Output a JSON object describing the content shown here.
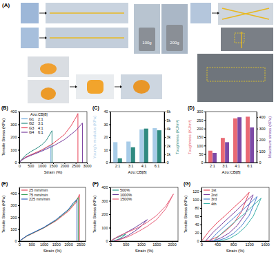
{
  "photos": {
    "label": "(A)",
    "weights": [
      "100g",
      "200g"
    ]
  },
  "chart_data": [
    {
      "type": "line",
      "title": "(B)",
      "xlabel": "Strain (%)",
      "ylabel": "Tensile Stress (KPa)",
      "xlim": [
        0,
        3000
      ],
      "xticks": [
        0,
        500,
        1000,
        1500,
        2000,
        2500,
        3000
      ],
      "ylim": [
        0,
        400
      ],
      "yticks": [
        0,
        100,
        200,
        300,
        400
      ],
      "legend": "upper left",
      "legend_title": "Azo:CB[8]",
      "series": [
        {
          "name": "G1",
          "ratio": "2:1",
          "color": "#6fa8dc",
          "x": [
            0,
            100,
            300,
            500,
            800,
            1000,
            1200,
            1400,
            1400
          ],
          "values": [
            0,
            20,
            45,
            60,
            80,
            95,
            115,
            135,
            0
          ]
        },
        {
          "name": "G2",
          "ratio": "3:1",
          "color": "#2a8c82",
          "x": [
            0,
            100,
            300,
            500,
            800,
            1000,
            1200,
            1450,
            1450
          ],
          "values": [
            0,
            25,
            60,
            85,
            115,
            140,
            175,
            250,
            0
          ]
        },
        {
          "name": "G3",
          "ratio": "4:1",
          "color": "#e8455a",
          "x": [
            0,
            100,
            300,
            500,
            1000,
            1500,
            2000,
            2300,
            2500,
            2600,
            2600
          ],
          "values": [
            0,
            20,
            45,
            60,
            100,
            150,
            220,
            290,
            350,
            385,
            0
          ]
        },
        {
          "name": "G4",
          "ratio": "6:1",
          "color": "#7b3f9e",
          "x": [
            0,
            100,
            300,
            500,
            1000,
            1500,
            2000,
            2500,
            2800,
            2800
          ],
          "values": [
            0,
            18,
            40,
            55,
            90,
            130,
            180,
            250,
            310,
            0
          ]
        }
      ]
    },
    {
      "type": "bar",
      "title": "(C)",
      "xlabel": "Azo:CB[8]",
      "ylabel": "Young's modulus (KPa)",
      "y2label": "Toughness (KJ/m³)",
      "categories": [
        "2:1",
        "3:1",
        "4:1",
        "6:1"
      ],
      "ylim": [
        0,
        40
      ],
      "yticks": [
        0,
        10,
        20,
        30,
        40
      ],
      "y2lim": [
        0,
        6000
      ],
      "y2ticks": [
        0,
        {
          "value": 1000,
          "label": "1k"
        },
        {
          "value": 2000,
          "label": "2k"
        },
        {
          "value": 3000,
          "label": "3k"
        },
        {
          "value": 4000,
          "label": "4k"
        },
        {
          "value": 5000,
          "label": "5k"
        },
        {
          "value": 6000,
          "label": "6k"
        }
      ],
      "series": [
        {
          "color": "#a8cce8",
          "values": [
            16,
            16.5,
            26,
            27
          ]
        },
        {
          "color": "#2f8a80",
          "axis": "y2",
          "values": [
            500,
            1800,
            4000,
            3800
          ]
        }
      ]
    },
    {
      "type": "bar",
      "title": "(D)",
      "xlabel": "Azo:CB[8]",
      "ylabel": "Toughness (KJ/m³)",
      "y2label": "Maximum stress (KPa)",
      "categories": [
        "2:1",
        "3:1",
        "4:1",
        "6:1"
      ],
      "ylim": [
        0,
        300
      ],
      "yticks": [
        0,
        50,
        100,
        150,
        200,
        250,
        300
      ],
      "y2lim": [
        0,
        450
      ],
      "y2ticks": [
        0,
        100,
        200,
        300,
        400
      ],
      "series": [
        {
          "color": "#e96a74",
          "values": [
            70,
            145,
            260,
            270
          ]
        },
        {
          "color": "#7d4aa6",
          "axis": "y2",
          "values": [
            85,
            180,
            400,
            310
          ]
        }
      ]
    },
    {
      "type": "line",
      "title": "(E)",
      "xlabel": "Strain (%)",
      "ylabel": "Tensile Stress (KPa)",
      "xlim": [
        0,
        2700
      ],
      "xticks": [
        0,
        500,
        1000,
        1500,
        2000,
        2500
      ],
      "ylim": [
        0,
        450
      ],
      "yticks": [
        0,
        100,
        200,
        300,
        400
      ],
      "legend": "upper left",
      "series": [
        {
          "name": "25 mm/min",
          "color": "#e8455a",
          "x": [
            0,
            300,
            600,
            1000,
            1500,
            2000,
            2300,
            2450,
            2450
          ],
          "values": [
            0,
            40,
            70,
            110,
            170,
            250,
            320,
            390,
            0
          ]
        },
        {
          "name": "75 mm/min",
          "color": "#3aa05a",
          "x": [
            0,
            300,
            600,
            1000,
            1500,
            2000,
            2250,
            2400,
            2400
          ],
          "values": [
            0,
            42,
            72,
            112,
            175,
            260,
            320,
            365,
            0
          ]
        },
        {
          "name": "225 mm/min",
          "color": "#3060c0",
          "x": [
            0,
            300,
            600,
            1000,
            1500,
            2000,
            2200,
            2350,
            2350
          ],
          "values": [
            0,
            45,
            75,
            115,
            180,
            265,
            320,
            350,
            0
          ]
        }
      ]
    },
    {
      "type": "line",
      "title": "(F)",
      "xlabel": "Strain (%)",
      "ylabel": "Tensile Stress (KPa)",
      "xlim": [
        0,
        2200
      ],
      "xticks": [
        0,
        500,
        1000,
        1500,
        2000
      ],
      "ylim": [
        0,
        400
      ],
      "yticks": [
        0,
        100,
        200,
        300,
        400
      ],
      "legend": "upper left",
      "series": [
        {
          "name": "500%",
          "color": "#2a9d8f",
          "x": [
            0,
            100,
            200,
            300,
            400,
            500,
            400,
            300,
            200,
            100,
            50
          ],
          "values": [
            0,
            14,
            24,
            33,
            42,
            52,
            32,
            18,
            9,
            2,
            0
          ]
        },
        {
          "name": "1000%",
          "color": "#6a3d9a",
          "x": [
            0,
            200,
            400,
            600,
            800,
            1000,
            1200,
            1000,
            800,
            600,
            400,
            200,
            100
          ],
          "values": [
            0,
            28,
            50,
            75,
            100,
            130,
            160,
            110,
            75,
            45,
            22,
            6,
            0
          ]
        },
        {
          "name": "1500%",
          "color": "#e8607a",
          "x": [
            0,
            300,
            600,
            900,
            1200,
            1500,
            1800,
            2050,
            1800,
            1500,
            1200,
            900,
            600,
            300,
            150
          ],
          "values": [
            0,
            40,
            70,
            100,
            140,
            190,
            260,
            350,
            240,
            160,
            110,
            70,
            35,
            10,
            0
          ]
        }
      ]
    },
    {
      "type": "line",
      "title": "(G)",
      "xlabel": "Strain (%)",
      "ylabel": "Tensile Stress (KPa)",
      "xlim": [
        0,
        1700
      ],
      "xticks": [
        0,
        400,
        800,
        1200,
        1600
      ],
      "ylim": [
        0,
        130
      ],
      "yticks": [
        0,
        20,
        40,
        60,
        80,
        100,
        120
      ],
      "legend": "upper left",
      "series": [
        {
          "name": "1st",
          "color": "#e8455a",
          "x": [
            0,
            200,
            400,
            600,
            800,
            1000,
            1200,
            1000,
            800,
            600,
            400,
            200,
            100
          ],
          "values": [
            0,
            25,
            45,
            62,
            80,
            98,
            118,
            70,
            42,
            24,
            10,
            2,
            0
          ]
        },
        {
          "name": "2nd",
          "color": "#7b3f9e",
          "x": [
            100,
            300,
            500,
            700,
            900,
            1100,
            1300,
            1100,
            900,
            700,
            500,
            300,
            200
          ],
          "values": [
            0,
            22,
            40,
            58,
            76,
            95,
            112,
            65,
            38,
            20,
            8,
            1,
            0
          ]
        },
        {
          "name": "3rd",
          "color": "#4a7fd0",
          "x": [
            200,
            400,
            600,
            800,
            1000,
            1200,
            1400,
            1200,
            1000,
            800,
            600,
            400,
            300
          ],
          "values": [
            0,
            20,
            38,
            55,
            72,
            90,
            108,
            62,
            36,
            18,
            7,
            1,
            0
          ]
        },
        {
          "name": "4th",
          "color": "#3ab0a8",
          "x": [
            300,
            500,
            700,
            900,
            1100,
            1300,
            1500,
            1300,
            1100,
            900,
            700,
            500,
            400
          ],
          "values": [
            0,
            18,
            35,
            52,
            68,
            86,
            104,
            60,
            34,
            17,
            6,
            1,
            0
          ]
        }
      ]
    }
  ]
}
